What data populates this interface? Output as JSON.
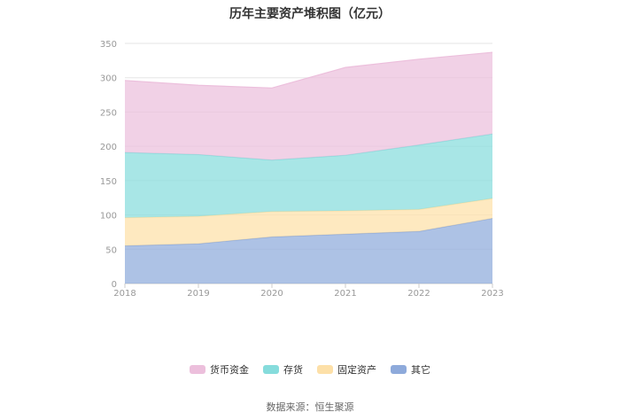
{
  "chart_data": {
    "type": "area",
    "title": "历年主要资产堆积图（亿元）",
    "x": [
      "2018",
      "2019",
      "2020",
      "2021",
      "2022",
      "2023"
    ],
    "ylim": [
      0,
      350
    ],
    "yticks": [
      0,
      50,
      100,
      150,
      200,
      250,
      300,
      350
    ],
    "stacked": true,
    "grid": true,
    "legend_position": "bottom",
    "series": [
      {
        "name": "其它",
        "color": "#8eaadb",
        "values": [
          55,
          58,
          68,
          72,
          76,
          95
        ]
      },
      {
        "name": "固定资产",
        "color": "#fde0a8",
        "values": [
          41,
          40,
          37,
          34,
          32,
          29
        ]
      },
      {
        "name": "存货",
        "color": "#86dcdc",
        "values": [
          95,
          90,
          75,
          81,
          94,
          94
        ]
      },
      {
        "name": "货币资金",
        "color": "#ecbfdc",
        "values": [
          105,
          101,
          105,
          128,
          125,
          119
        ]
      }
    ],
    "legend_order": [
      "货币资金",
      "存货",
      "固定资产",
      "其它"
    ]
  },
  "source": "数据来源：恒生聚源"
}
